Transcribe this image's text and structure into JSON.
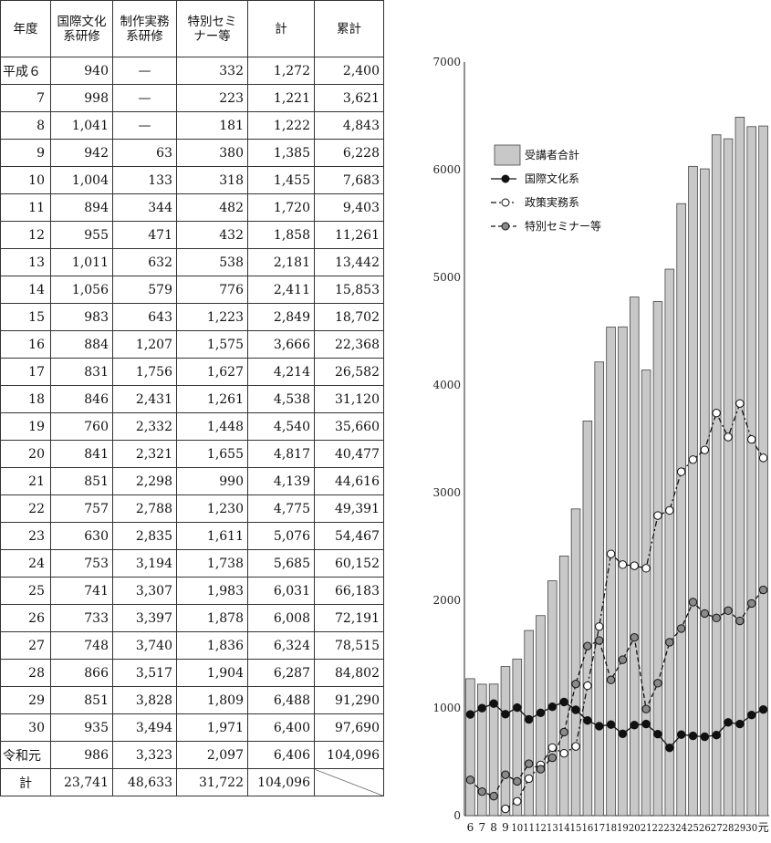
{
  "table": {
    "headers": [
      "年度",
      "国際文化\n系研修",
      "制作実務\n系研修",
      "特別セミ\nナー等",
      "計",
      "累計"
    ],
    "rows": [
      [
        "平成６",
        "940",
        "—",
        "332",
        "1,272",
        "2,400"
      ],
      [
        "7",
        "998",
        "—",
        "223",
        "1,221",
        "3,621"
      ],
      [
        "8",
        "1,041",
        "—",
        "181",
        "1,222",
        "4,843"
      ],
      [
        "9",
        "942",
        "63",
        "380",
        "1,385",
        "6,228"
      ],
      [
        "10",
        "1,004",
        "133",
        "318",
        "1,455",
        "7,683"
      ],
      [
        "11",
        "894",
        "344",
        "482",
        "1,720",
        "9,403"
      ],
      [
        "12",
        "955",
        "471",
        "432",
        "1,858",
        "11,261"
      ],
      [
        "13",
        "1,011",
        "632",
        "538",
        "2,181",
        "13,442"
      ],
      [
        "14",
        "1,056",
        "579",
        "776",
        "2,411",
        "15,853"
      ],
      [
        "15",
        "983",
        "643",
        "1,223",
        "2,849",
        "18,702"
      ],
      [
        "16",
        "884",
        "1,207",
        "1,575",
        "3,666",
        "22,368"
      ],
      [
        "17",
        "831",
        "1,756",
        "1,627",
        "4,214",
        "26,582"
      ],
      [
        "18",
        "846",
        "2,431",
        "1,261",
        "4,538",
        "31,120"
      ],
      [
        "19",
        "760",
        "2,332",
        "1,448",
        "4,540",
        "35,660"
      ],
      [
        "20",
        "841",
        "2,321",
        "1,655",
        "4,817",
        "40,477"
      ],
      [
        "21",
        "851",
        "2,298",
        "990",
        "4,139",
        "44,616"
      ],
      [
        "22",
        "757",
        "2,788",
        "1,230",
        "4,775",
        "49,391"
      ],
      [
        "23",
        "630",
        "2,835",
        "1,611",
        "5,076",
        "54,467"
      ],
      [
        "24",
        "753",
        "3,194",
        "1,738",
        "5,685",
        "60,152"
      ],
      [
        "25",
        "741",
        "3,307",
        "1,983",
        "6,031",
        "66,183"
      ],
      [
        "26",
        "733",
        "3,397",
        "1,878",
        "6,008",
        "72,191"
      ],
      [
        "27",
        "748",
        "3,740",
        "1,836",
        "6,324",
        "78,515"
      ],
      [
        "28",
        "866",
        "3,517",
        "1,904",
        "6,287",
        "84,802"
      ],
      [
        "29",
        "851",
        "3,828",
        "1,809",
        "6,488",
        "91,290"
      ],
      [
        "30",
        "935",
        "3,494",
        "1,971",
        "6,400",
        "97,690"
      ],
      [
        "令和元",
        "986",
        "3,323",
        "2,097",
        "6,406",
        "104,096"
      ]
    ],
    "total_row": [
      "計",
      "23,741",
      "48,633",
      "31,722",
      "104,096",
      ""
    ]
  },
  "chart_data": {
    "type": "bar",
    "categories": [
      "6",
      "7",
      "8",
      "9",
      "10",
      "11",
      "12",
      "13",
      "14",
      "15",
      "16",
      "17",
      "18",
      "19",
      "20",
      "21",
      "22",
      "23",
      "24",
      "25",
      "26",
      "27",
      "28",
      "29",
      "30",
      "元"
    ],
    "ylim": [
      0,
      7000
    ],
    "yticks": [
      0,
      1000,
      2000,
      3000,
      4000,
      5000,
      6000,
      7000
    ],
    "legend_position": "upper-left",
    "grid": false,
    "series": [
      {
        "name": "受講者合計",
        "kind": "bar",
        "color": "#c8c8c8",
        "values": [
          1272,
          1221,
          1222,
          1385,
          1455,
          1720,
          1858,
          2181,
          2411,
          2849,
          3666,
          4214,
          4538,
          4540,
          4817,
          4139,
          4775,
          5076,
          5685,
          6031,
          6008,
          6324,
          6287,
          6488,
          6400,
          6406
        ]
      },
      {
        "name": "国際文化系",
        "kind": "line",
        "style": "solid",
        "marker": "filled-black",
        "color": "#111111",
        "values": [
          940,
          998,
          1041,
          942,
          1004,
          894,
          955,
          1011,
          1056,
          983,
          884,
          831,
          846,
          760,
          841,
          851,
          757,
          630,
          753,
          741,
          733,
          748,
          866,
          851,
          935,
          986
        ]
      },
      {
        "name": "政策実務系",
        "kind": "line",
        "style": "dashdot",
        "marker": "open-white",
        "color": "#111111",
        "values": [
          null,
          null,
          null,
          63,
          133,
          344,
          471,
          632,
          579,
          643,
          1207,
          1756,
          2431,
          2332,
          2321,
          2298,
          2788,
          2835,
          3194,
          3307,
          3397,
          3740,
          3517,
          3828,
          3494,
          3323
        ]
      },
      {
        "name": "特別セミナー等",
        "kind": "line",
        "style": "dashed",
        "marker": "filled-gray",
        "color": "#111111",
        "values": [
          332,
          223,
          181,
          380,
          318,
          482,
          432,
          538,
          776,
          1223,
          1575,
          1627,
          1261,
          1448,
          1655,
          990,
          1230,
          1611,
          1738,
          1983,
          1878,
          1836,
          1904,
          1809,
          1971,
          2097
        ]
      }
    ]
  }
}
